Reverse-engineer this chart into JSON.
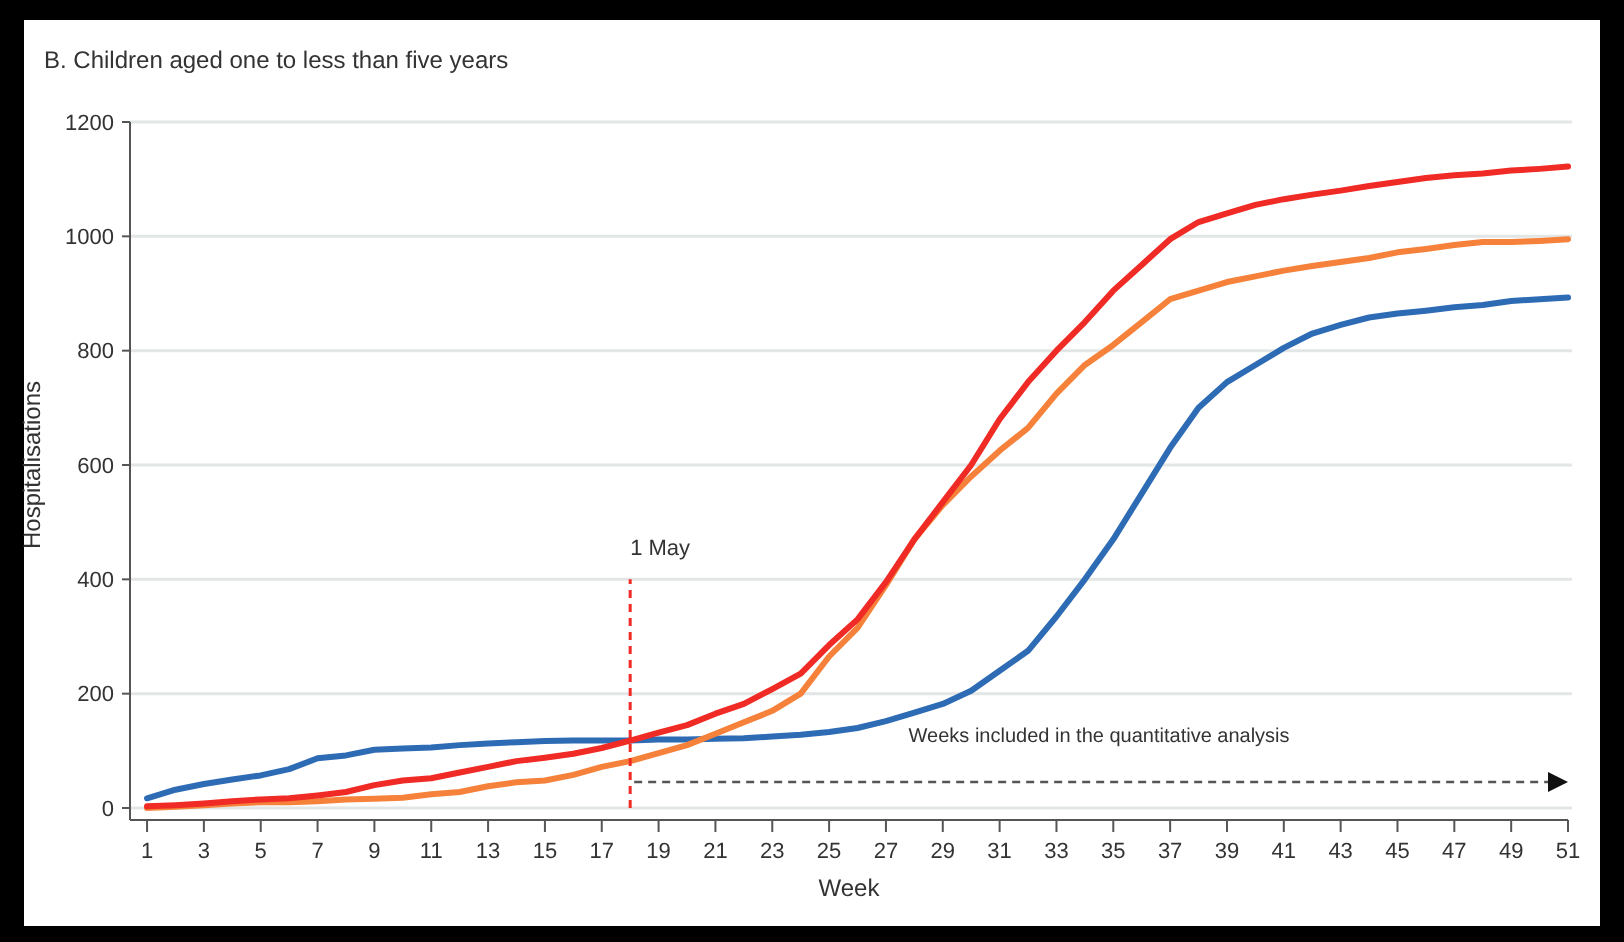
{
  "chart_data": {
    "type": "line",
    "title": "B. Children aged one to less than five years",
    "xlabel": "Week",
    "ylabel": "Hospitalisations",
    "x": [
      1,
      2,
      3,
      4,
      5,
      6,
      7,
      8,
      9,
      10,
      11,
      12,
      13,
      14,
      15,
      16,
      17,
      18,
      19,
      20,
      21,
      22,
      23,
      24,
      25,
      26,
      27,
      28,
      29,
      30,
      31,
      32,
      33,
      34,
      35,
      36,
      37,
      38,
      39,
      40,
      41,
      42,
      43,
      44,
      45,
      46,
      47,
      48,
      49,
      50,
      51
    ],
    "series": [
      {
        "color": "#2e6bb5",
        "values": [
          17,
          32,
          42,
          50,
          57,
          68,
          87,
          92,
          102,
          104,
          106,
          110,
          113,
          115,
          117,
          118,
          118,
          118,
          120,
          120,
          121,
          122,
          125,
          128,
          133,
          140,
          152,
          167,
          182,
          205,
          240,
          275,
          335,
          400,
          470,
          550,
          630,
          700,
          745,
          775,
          805,
          830,
          845,
          858,
          865,
          870,
          876,
          880,
          887,
          890,
          893
        ]
      },
      {
        "color": "#f5813a",
        "values": [
          0,
          2,
          5,
          8,
          10,
          10,
          12,
          15,
          16,
          18,
          24,
          28,
          38,
          45,
          48,
          58,
          72,
          82,
          96,
          110,
          130,
          150,
          170,
          200,
          265,
          315,
          390,
          470,
          530,
          580,
          625,
          665,
          725,
          775,
          810,
          850,
          890,
          905,
          920,
          930,
          940,
          948,
          955,
          962,
          972,
          978,
          985,
          990,
          990,
          992,
          995
        ]
      },
      {
        "color": "#f02a24",
        "values": [
          3,
          5,
          8,
          12,
          15,
          17,
          22,
          28,
          40,
          48,
          52,
          62,
          72,
          82,
          88,
          95,
          105,
          118,
          132,
          145,
          165,
          182,
          208,
          235,
          285,
          330,
          395,
          470,
          535,
          600,
          680,
          745,
          800,
          850,
          905,
          950,
          995,
          1025,
          1040,
          1055,
          1065,
          1073,
          1080,
          1088,
          1095,
          1102,
          1107,
          1110,
          1115,
          1118,
          1122
        ]
      }
    ],
    "xlim": [
      0.4,
      51
    ],
    "xticks": [
      1,
      3,
      5,
      7,
      9,
      11,
      13,
      15,
      17,
      19,
      21,
      23,
      25,
      27,
      29,
      31,
      33,
      35,
      37,
      39,
      41,
      43,
      45,
      47,
      49,
      51
    ],
    "ylim": [
      0,
      1200
    ],
    "yticks": [
      0,
      200,
      400,
      600,
      800,
      1000,
      1200
    ],
    "grid": "y",
    "ref_lines": [
      {
        "axis": "x",
        "value": 18,
        "label": "1 May",
        "color": "#f02a24",
        "line_style": "dashed"
      }
    ],
    "annotations": [
      "Weeks included in the quantitative analysis"
    ]
  }
}
